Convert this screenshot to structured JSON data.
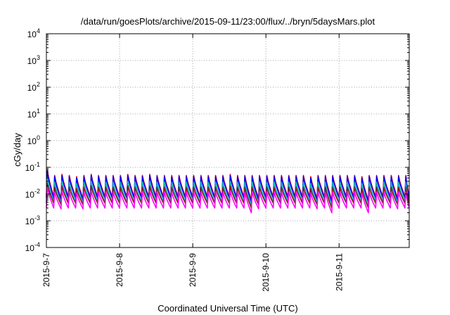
{
  "chart_data": {
    "type": "line",
    "title": "/data/run/goesPlots/archive/2015-09-11/23:00/flux/../bryn/5daysMars.plot",
    "xlabel": "Coordinated Universal Time (UTC)",
    "ylabel": "cGy/day",
    "yscale": "log",
    "ylim": [
      0.0001,
      10000
    ],
    "xlim": [
      "2015-09-07 00:00",
      "2015-09-11 23:00"
    ],
    "grid": true,
    "x_ticks": [
      "2015-9-7",
      "2015-9-8",
      "2015-9-9",
      "2015-9-10",
      "2015-9-11"
    ],
    "y_ticks": [
      {
        "base": "10",
        "exp": "-4"
      },
      {
        "base": "10",
        "exp": "-3"
      },
      {
        "base": "10",
        "exp": "-2"
      },
      {
        "base": "10",
        "exp": "-1"
      },
      {
        "base": "10",
        "exp": "0"
      },
      {
        "base": "10",
        "exp": "1"
      },
      {
        "base": "10",
        "exp": "2"
      },
      {
        "base": "10",
        "exp": "3"
      },
      {
        "base": "10",
        "exp": "4"
      }
    ],
    "cycle_days": 0.1,
    "series": [
      {
        "color": "#ff0000",
        "peak": [
          0.08,
          0.05,
          0.055,
          0.05,
          0.045,
          0.05,
          0.055,
          0.05,
          0.05,
          0.05,
          0.05,
          0.055,
          0.05,
          0.05,
          0.055,
          0.05,
          0.05,
          0.05,
          0.05,
          0.05,
          0.05,
          0.05,
          0.05,
          0.05,
          0.05,
          0.055,
          0.05,
          0.05,
          0.05,
          0.05,
          0.05,
          0.05,
          0.05,
          0.05,
          0.05,
          0.05,
          0.045,
          0.05,
          0.05,
          0.05,
          0.05,
          0.05,
          0.05,
          0.045,
          0.05,
          0.05,
          0.05,
          0.05,
          0.05,
          0.05
        ],
        "trough": [
          0.008,
          0.007,
          0.008,
          0.008,
          0.007,
          0.008,
          0.008,
          0.008,
          0.008,
          0.008,
          0.008,
          0.008,
          0.008,
          0.008,
          0.008,
          0.008,
          0.008,
          0.008,
          0.008,
          0.008,
          0.008,
          0.008,
          0.008,
          0.008,
          0.008,
          0.008,
          0.008,
          0.006,
          0.007,
          0.008,
          0.008,
          0.008,
          0.008,
          0.008,
          0.008,
          0.008,
          0.007,
          0.008,
          0.006,
          0.008,
          0.008,
          0.008,
          0.008,
          0.006,
          0.008,
          0.008,
          0.008,
          0.007,
          0.008,
          0.008
        ]
      },
      {
        "color": "#0000ff",
        "peak": [
          0.07,
          0.045,
          0.05,
          0.045,
          0.04,
          0.045,
          0.05,
          0.045,
          0.045,
          0.045,
          0.045,
          0.05,
          0.045,
          0.045,
          0.05,
          0.045,
          0.045,
          0.045,
          0.045,
          0.045,
          0.045,
          0.045,
          0.045,
          0.045,
          0.045,
          0.05,
          0.045,
          0.045,
          0.045,
          0.045,
          0.045,
          0.045,
          0.045,
          0.045,
          0.045,
          0.045,
          0.04,
          0.045,
          0.045,
          0.045,
          0.045,
          0.045,
          0.045,
          0.04,
          0.045,
          0.045,
          0.045,
          0.045,
          0.045,
          0.045
        ],
        "trough": [
          0.007,
          0.006,
          0.007,
          0.007,
          0.006,
          0.007,
          0.007,
          0.007,
          0.007,
          0.007,
          0.007,
          0.007,
          0.007,
          0.007,
          0.007,
          0.007,
          0.007,
          0.007,
          0.007,
          0.007,
          0.007,
          0.007,
          0.007,
          0.007,
          0.007,
          0.007,
          0.007,
          0.005,
          0.006,
          0.007,
          0.007,
          0.007,
          0.007,
          0.007,
          0.007,
          0.007,
          0.006,
          0.007,
          0.005,
          0.007,
          0.007,
          0.007,
          0.007,
          0.005,
          0.007,
          0.007,
          0.007,
          0.006,
          0.007,
          0.007
        ]
      },
      {
        "color": "#00b8b8",
        "peak": [
          0.04,
          0.028,
          0.03,
          0.028,
          0.025,
          0.028,
          0.03,
          0.028,
          0.028,
          0.028,
          0.028,
          0.03,
          0.028,
          0.028,
          0.03,
          0.028,
          0.028,
          0.028,
          0.028,
          0.028,
          0.028,
          0.028,
          0.028,
          0.028,
          0.028,
          0.03,
          0.028,
          0.028,
          0.028,
          0.028,
          0.028,
          0.028,
          0.028,
          0.028,
          0.028,
          0.028,
          0.025,
          0.028,
          0.028,
          0.028,
          0.028,
          0.028,
          0.028,
          0.025,
          0.028,
          0.028,
          0.028,
          0.028,
          0.028,
          0.028
        ],
        "trough": [
          0.005,
          0.0045,
          0.005,
          0.005,
          0.0045,
          0.005,
          0.005,
          0.005,
          0.005,
          0.005,
          0.005,
          0.005,
          0.005,
          0.005,
          0.005,
          0.005,
          0.005,
          0.005,
          0.005,
          0.005,
          0.005,
          0.005,
          0.005,
          0.005,
          0.005,
          0.005,
          0.005,
          0.0035,
          0.0045,
          0.005,
          0.005,
          0.005,
          0.005,
          0.005,
          0.005,
          0.005,
          0.0045,
          0.005,
          0.0035,
          0.005,
          0.005,
          0.005,
          0.005,
          0.0035,
          0.005,
          0.005,
          0.005,
          0.0045,
          0.005,
          0.005
        ]
      },
      {
        "color": "#8b1a1a",
        "peak": [
          0.025,
          0.018,
          0.02,
          0.018,
          0.016,
          0.018,
          0.02,
          0.018,
          0.018,
          0.018,
          0.018,
          0.02,
          0.018,
          0.018,
          0.02,
          0.018,
          0.018,
          0.018,
          0.018,
          0.018,
          0.018,
          0.018,
          0.018,
          0.018,
          0.018,
          0.02,
          0.018,
          0.018,
          0.018,
          0.018,
          0.018,
          0.018,
          0.018,
          0.018,
          0.018,
          0.018,
          0.016,
          0.018,
          0.018,
          0.018,
          0.018,
          0.018,
          0.018,
          0.016,
          0.018,
          0.018,
          0.018,
          0.018,
          0.018,
          0.018
        ],
        "trough": [
          0.0045,
          0.004,
          0.0045,
          0.0045,
          0.004,
          0.0045,
          0.0045,
          0.0045,
          0.0045,
          0.0045,
          0.0045,
          0.0045,
          0.0045,
          0.0045,
          0.0045,
          0.0045,
          0.0045,
          0.0045,
          0.0045,
          0.0045,
          0.0045,
          0.0045,
          0.0045,
          0.0045,
          0.0045,
          0.0045,
          0.0045,
          0.003,
          0.004,
          0.0045,
          0.0045,
          0.0045,
          0.0045,
          0.0045,
          0.0045,
          0.0045,
          0.004,
          0.0045,
          0.003,
          0.0045,
          0.0045,
          0.0045,
          0.0045,
          0.003,
          0.0045,
          0.0045,
          0.0045,
          0.004,
          0.0045,
          0.0045
        ]
      },
      {
        "color": "#ff00ff",
        "peak": [
          0.018,
          0.012,
          0.013,
          0.012,
          0.011,
          0.012,
          0.013,
          0.012,
          0.012,
          0.012,
          0.012,
          0.013,
          0.012,
          0.012,
          0.013,
          0.012,
          0.012,
          0.012,
          0.012,
          0.012,
          0.012,
          0.012,
          0.012,
          0.012,
          0.012,
          0.013,
          0.012,
          0.012,
          0.012,
          0.012,
          0.012,
          0.012,
          0.012,
          0.012,
          0.012,
          0.012,
          0.011,
          0.012,
          0.012,
          0.012,
          0.012,
          0.012,
          0.012,
          0.011,
          0.012,
          0.012,
          0.012,
          0.012,
          0.012,
          0.012
        ],
        "trough": [
          0.003,
          0.0028,
          0.003,
          0.003,
          0.0028,
          0.003,
          0.003,
          0.003,
          0.003,
          0.003,
          0.003,
          0.003,
          0.003,
          0.003,
          0.003,
          0.003,
          0.003,
          0.003,
          0.003,
          0.003,
          0.003,
          0.003,
          0.003,
          0.003,
          0.003,
          0.003,
          0.003,
          0.002,
          0.0028,
          0.003,
          0.003,
          0.003,
          0.003,
          0.003,
          0.003,
          0.003,
          0.0028,
          0.003,
          0.002,
          0.003,
          0.003,
          0.003,
          0.003,
          0.002,
          0.003,
          0.003,
          0.003,
          0.0028,
          0.003,
          0.003
        ]
      }
    ]
  }
}
